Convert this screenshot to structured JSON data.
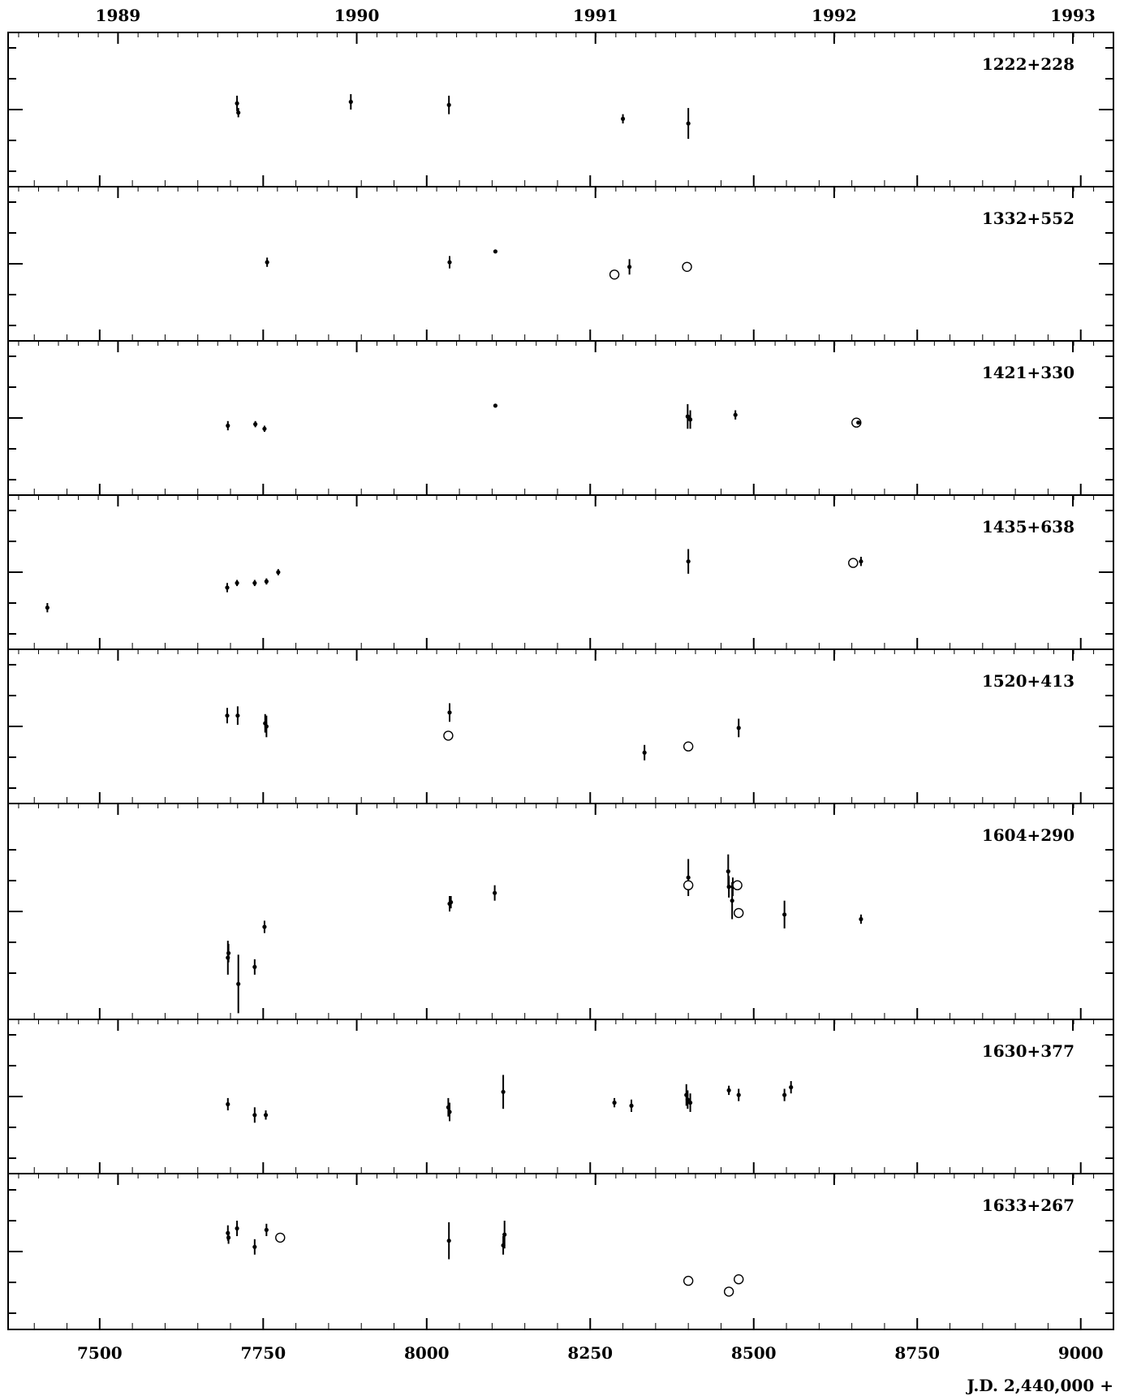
{
  "chart_data": {
    "type": "scatter",
    "x_axis": {
      "label": "J.D. 2,440,000 +",
      "range": [
        7360,
        9050
      ],
      "major_ticks": [
        7500,
        7750,
        8000,
        8250,
        8500,
        8750,
        9000
      ],
      "minor_step": 50
    },
    "year_axis": {
      "labels": [
        "1989",
        "1990",
        "1991",
        "1992",
        "1993"
      ],
      "positions_jd": [
        7528,
        7893,
        8258,
        8623,
        8988
      ]
    },
    "y_range": [
      -2.5,
      2.5
    ],
    "legend": "none",
    "grid": false,
    "marker_styles": {
      "filled": "dot with error bar",
      "open": "open circle"
    },
    "panels": [
      {
        "name": "1222+228",
        "points": [
          {
            "x": 7710,
            "y": 0.2,
            "err": 0.25,
            "style": "filled"
          },
          {
            "x": 7712,
            "y": -0.1,
            "err": 0.15,
            "style": "filled"
          },
          {
            "x": 7884,
            "y": 0.25,
            "err": 0.25,
            "style": "filled"
          },
          {
            "x": 8034,
            "y": 0.15,
            "err": 0.3,
            "style": "filled"
          },
          {
            "x": 8300,
            "y": -0.3,
            "err": 0.15,
            "style": "filled"
          },
          {
            "x": 8400,
            "y": -0.45,
            "err": 0.5,
            "style": "filled"
          }
        ]
      },
      {
        "name": "1332+552",
        "points": [
          {
            "x": 7756,
            "y": 0.05,
            "err": 0.15,
            "style": "filled"
          },
          {
            "x": 8035,
            "y": 0.05,
            "err": 0.2,
            "style": "filled"
          },
          {
            "x": 8105,
            "y": 0.4,
            "err": 0.0,
            "style": "filled"
          },
          {
            "x": 8287,
            "y": -0.35,
            "err": 0.0,
            "style": "open"
          },
          {
            "x": 8310,
            "y": -0.1,
            "err": 0.25,
            "style": "filled"
          },
          {
            "x": 8398,
            "y": -0.1,
            "err": 0.0,
            "style": "open"
          }
        ]
      },
      {
        "name": "1421+330",
        "points": [
          {
            "x": 7696,
            "y": -0.25,
            "err": 0.15,
            "style": "filled"
          },
          {
            "x": 7738,
            "y": -0.2,
            "err": 0.1,
            "style": "filled"
          },
          {
            "x": 7752,
            "y": -0.35,
            "err": 0.1,
            "style": "filled"
          },
          {
            "x": 8105,
            "y": 0.4,
            "err": 0.0,
            "style": "filled"
          },
          {
            "x": 8399,
            "y": 0.05,
            "err": 0.4,
            "style": "filled"
          },
          {
            "x": 8403,
            "y": -0.05,
            "err": 0.3,
            "style": "filled"
          },
          {
            "x": 8472,
            "y": 0.1,
            "err": 0.15,
            "style": "filled"
          },
          {
            "x": 8657,
            "y": -0.15,
            "err": 0.0,
            "style": "open"
          },
          {
            "x": 8660,
            "y": -0.15,
            "err": 0.0,
            "style": "filled"
          }
        ]
      },
      {
        "name": "1435+638",
        "points": [
          {
            "x": 7420,
            "y": -1.15,
            "err": 0.15,
            "style": "filled"
          },
          {
            "x": 7695,
            "y": -0.5,
            "err": 0.15,
            "style": "filled"
          },
          {
            "x": 7710,
            "y": -0.35,
            "err": 0.1,
            "style": "filled"
          },
          {
            "x": 7737,
            "y": -0.35,
            "err": 0.1,
            "style": "filled"
          },
          {
            "x": 7755,
            "y": -0.3,
            "err": 0.1,
            "style": "filled"
          },
          {
            "x": 7773,
            "y": 0.0,
            "err": 0.1,
            "style": "filled"
          },
          {
            "x": 8400,
            "y": 0.35,
            "err": 0.4,
            "style": "filled"
          },
          {
            "x": 8652,
            "y": 0.3,
            "err": 0.0,
            "style": "open"
          },
          {
            "x": 8664,
            "y": 0.35,
            "err": 0.15,
            "style": "filled"
          }
        ]
      },
      {
        "name": "1520+413",
        "points": [
          {
            "x": 7695,
            "y": 0.35,
            "err": 0.25,
            "style": "filled"
          },
          {
            "x": 7711,
            "y": 0.35,
            "err": 0.3,
            "style": "filled"
          },
          {
            "x": 7753,
            "y": 0.1,
            "err": 0.3,
            "style": "filled"
          },
          {
            "x": 7755,
            "y": 0.0,
            "err": 0.35,
            "style": "filled"
          },
          {
            "x": 8035,
            "y": 0.45,
            "err": 0.3,
            "style": "filled"
          },
          {
            "x": 8033,
            "y": -0.3,
            "err": 0.0,
            "style": "open"
          },
          {
            "x": 8333,
            "y": -0.85,
            "err": 0.25,
            "style": "filled"
          },
          {
            "x": 8400,
            "y": -0.65,
            "err": 0.0,
            "style": "open"
          },
          {
            "x": 8477,
            "y": -0.05,
            "err": 0.3,
            "style": "filled"
          }
        ]
      },
      {
        "name": "1604+290",
        "points": [
          {
            "x": 7696,
            "y": -1.5,
            "err": 0.55,
            "style": "filled"
          },
          {
            "x": 7697,
            "y": -1.35,
            "err": 0.3,
            "style": "filled"
          },
          {
            "x": 7712,
            "y": -2.35,
            "err": 0.95,
            "style": "filled"
          },
          {
            "x": 7737,
            "y": -1.8,
            "err": 0.25,
            "style": "filled"
          },
          {
            "x": 7752,
            "y": -0.5,
            "err": 0.2,
            "style": "filled"
          },
          {
            "x": 8035,
            "y": 0.25,
            "err": 0.25,
            "style": "filled"
          },
          {
            "x": 8037,
            "y": 0.3,
            "err": 0.2,
            "style": "filled"
          },
          {
            "x": 8104,
            "y": 0.6,
            "err": 0.25,
            "style": "filled"
          },
          {
            "x": 8400,
            "y": 1.1,
            "err": 0.6,
            "style": "filled"
          },
          {
            "x": 8400,
            "y": 0.85,
            "err": 0.0,
            "style": "open"
          },
          {
            "x": 8461,
            "y": 1.3,
            "err": 0.55,
            "style": "filled"
          },
          {
            "x": 8462,
            "y": 0.8,
            "err": 0.35,
            "style": "filled"
          },
          {
            "x": 8467,
            "y": 0.35,
            "err": 0.6,
            "style": "filled"
          },
          {
            "x": 8468,
            "y": 0.8,
            "err": 0.3,
            "style": "filled"
          },
          {
            "x": 8475,
            "y": 0.85,
            "err": 0.0,
            "style": "open"
          },
          {
            "x": 8477,
            "y": -0.05,
            "err": 0.0,
            "style": "open"
          },
          {
            "x": 8547,
            "y": -0.1,
            "err": 0.45,
            "style": "filled"
          },
          {
            "x": 8664,
            "y": -0.25,
            "err": 0.15,
            "style": "filled"
          }
        ]
      },
      {
        "name": "1630+377",
        "points": [
          {
            "x": 7696,
            "y": -0.25,
            "err": 0.2,
            "style": "filled"
          },
          {
            "x": 7737,
            "y": -0.6,
            "err": 0.25,
            "style": "filled"
          },
          {
            "x": 7754,
            "y": -0.6,
            "err": 0.15,
            "style": "filled"
          },
          {
            "x": 8033,
            "y": -0.35,
            "err": 0.3,
            "style": "filled"
          },
          {
            "x": 8035,
            "y": -0.5,
            "err": 0.3,
            "style": "filled"
          },
          {
            "x": 8117,
            "y": 0.15,
            "err": 0.55,
            "style": "filled"
          },
          {
            "x": 8287,
            "y": -0.2,
            "err": 0.15,
            "style": "filled"
          },
          {
            "x": 8313,
            "y": -0.3,
            "err": 0.2,
            "style": "filled"
          },
          {
            "x": 8397,
            "y": 0.05,
            "err": 0.35,
            "style": "filled"
          },
          {
            "x": 8399,
            "y": -0.1,
            "err": 0.3,
            "style": "filled"
          },
          {
            "x": 8403,
            "y": -0.2,
            "err": 0.3,
            "style": "filled"
          },
          {
            "x": 8462,
            "y": 0.2,
            "err": 0.15,
            "style": "filled"
          },
          {
            "x": 8477,
            "y": 0.05,
            "err": 0.2,
            "style": "filled"
          },
          {
            "x": 8547,
            "y": 0.05,
            "err": 0.2,
            "style": "filled"
          },
          {
            "x": 8557,
            "y": 0.3,
            "err": 0.2,
            "style": "filled"
          }
        ]
      },
      {
        "name": "1633+267",
        "points": [
          {
            "x": 7696,
            "y": 0.6,
            "err": 0.25,
            "style": "filled"
          },
          {
            "x": 7697,
            "y": 0.45,
            "err": 0.2,
            "style": "filled"
          },
          {
            "x": 7710,
            "y": 0.75,
            "err": 0.25,
            "style": "filled"
          },
          {
            "x": 7737,
            "y": 0.15,
            "err": 0.25,
            "style": "filled"
          },
          {
            "x": 7755,
            "y": 0.7,
            "err": 0.2,
            "style": "filled"
          },
          {
            "x": 7776,
            "y": 0.45,
            "err": 0.0,
            "style": "open"
          },
          {
            "x": 8034,
            "y": 0.35,
            "err": 0.6,
            "style": "filled"
          },
          {
            "x": 8117,
            "y": 0.2,
            "err": 0.3,
            "style": "filled"
          },
          {
            "x": 8119,
            "y": 0.55,
            "err": 0.45,
            "style": "filled"
          },
          {
            "x": 8400,
            "y": -0.95,
            "err": 0.0,
            "style": "open"
          },
          {
            "x": 8462,
            "y": -1.3,
            "err": 0.0,
            "style": "open"
          },
          {
            "x": 8477,
            "y": -0.9,
            "err": 0.0,
            "style": "open"
          }
        ]
      }
    ]
  }
}
